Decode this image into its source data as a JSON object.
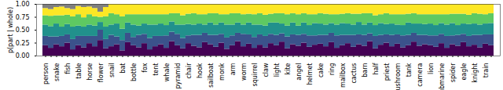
{
  "chart_data": {
    "type": "bar",
    "stacked": true,
    "y_label": "p(part | whole)",
    "categories": [
      "person",
      null,
      "snake",
      null,
      "fish",
      null,
      "table",
      null,
      "horse",
      null,
      "flower",
      null,
      "snail",
      null,
      "bat",
      null,
      "bottle",
      null,
      "fox",
      null,
      "tent",
      null,
      "whale",
      null,
      "pyramid",
      null,
      "chair",
      null,
      "hook",
      null,
      "sailboat",
      null,
      "monk",
      null,
      "arm",
      null,
      "worm",
      null,
      "squirrel",
      null,
      "claw",
      null,
      "light",
      null,
      "kite",
      null,
      "angel",
      null,
      "helmet",
      null,
      "cake",
      null,
      "ring",
      null,
      "mailbox",
      null,
      "cactus",
      null,
      "barn",
      null,
      "half",
      null,
      "priest",
      null,
      "mushroom",
      null,
      "tank",
      null,
      "camera",
      null,
      "lion",
      null,
      "submarine",
      null,
      "spider",
      null,
      "eagle",
      null,
      "knight",
      null,
      "train",
      null
    ],
    "series": [
      {
        "color": "#440154",
        "values": [
          0.2,
          0.15,
          0.22,
          0.18,
          0.25,
          0.12,
          0.2,
          0.16,
          0.24,
          0.18,
          0.3,
          0.14,
          0.18,
          0.22,
          0.1,
          0.26,
          0.2,
          0.16,
          0.24,
          0.12,
          0.18,
          0.22,
          0.15,
          0.28,
          0.2,
          0.14,
          0.24,
          0.19,
          0.16,
          0.26,
          0.22,
          0.17,
          0.25,
          0.13,
          0.2,
          0.28,
          0.18,
          0.23,
          0.15,
          0.21,
          0.16,
          0.24,
          0.2,
          0.27,
          0.14,
          0.22,
          0.19,
          0.25,
          0.17,
          0.21,
          0.23,
          0.18,
          0.26,
          0.15,
          0.2,
          0.24,
          0.17,
          0.22,
          0.19,
          0.28,
          0.14,
          0.21,
          0.25,
          0.18,
          0.23,
          0.16,
          0.2,
          0.27,
          0.19,
          0.22,
          0.2,
          0.17,
          0.24,
          0.15,
          0.22,
          0.19,
          0.26,
          0.18,
          0.21,
          0.16,
          0.23,
          0.2
        ]
      },
      {
        "color": "#3b528b",
        "values": [
          0.18,
          0.22,
          0.15,
          0.2,
          0.16,
          0.2,
          0.18,
          0.22,
          0.14,
          0.2,
          0.2,
          0.18,
          0.22,
          0.15,
          0.2,
          0.18,
          0.16,
          0.24,
          0.18,
          0.22,
          0.2,
          0.16,
          0.24,
          0.18,
          0.22,
          0.2,
          0.15,
          0.21,
          0.24,
          0.18,
          0.18,
          0.23,
          0.17,
          0.22,
          0.19,
          0.16,
          0.24,
          0.18,
          0.21,
          0.2,
          0.22,
          0.18,
          0.2,
          0.16,
          0.23,
          0.19,
          0.21,
          0.17,
          0.22,
          0.18,
          0.17,
          0.22,
          0.18,
          0.24,
          0.2,
          0.16,
          0.23,
          0.19,
          0.21,
          0.15,
          0.24,
          0.19,
          0.16,
          0.22,
          0.18,
          0.23,
          0.2,
          0.17,
          0.21,
          0.18,
          0.19,
          0.22,
          0.18,
          0.23,
          0.17,
          0.21,
          0.16,
          0.2,
          0.19,
          0.24,
          0.18,
          0.21
        ]
      },
      {
        "color": "#21918c",
        "values": [
          0.22,
          0.2,
          0.25,
          0.18,
          0.2,
          0.24,
          0.2,
          0.18,
          0.22,
          0.2,
          0.15,
          0.24,
          0.2,
          0.25,
          0.22,
          0.2,
          0.24,
          0.18,
          0.2,
          0.26,
          0.22,
          0.24,
          0.2,
          0.2,
          0.18,
          0.26,
          0.22,
          0.2,
          0.22,
          0.16,
          0.24,
          0.2,
          0.22,
          0.25,
          0.21,
          0.2,
          0.18,
          0.23,
          0.24,
          0.19,
          0.2,
          0.22,
          0.24,
          0.19,
          0.21,
          0.23,
          0.18,
          0.22,
          0.2,
          0.24,
          0.22,
          0.2,
          0.19,
          0.21,
          0.23,
          0.22,
          0.2,
          0.24,
          0.2,
          0.21,
          0.21,
          0.23,
          0.2,
          0.22,
          0.19,
          0.2,
          0.24,
          0.18,
          0.22,
          0.21,
          0.23,
          0.2,
          0.21,
          0.22,
          0.24,
          0.19,
          0.2,
          0.23,
          0.22,
          0.2,
          0.21,
          0.22
        ]
      },
      {
        "color": "#5ec962",
        "values": [
          0.18,
          0.2,
          0.16,
          0.22,
          0.18,
          0.2,
          0.22,
          0.18,
          0.2,
          0.18,
          0.1,
          0.2,
          0.22,
          0.18,
          0.24,
          0.16,
          0.2,
          0.22,
          0.18,
          0.2,
          0.2,
          0.18,
          0.21,
          0.16,
          0.22,
          0.18,
          0.2,
          0.22,
          0.18,
          0.2,
          0.18,
          0.22,
          0.16,
          0.2,
          0.22,
          0.18,
          0.2,
          0.17,
          0.2,
          0.22,
          0.21,
          0.17,
          0.18,
          0.2,
          0.22,
          0.18,
          0.22,
          0.18,
          0.21,
          0.17,
          0.2,
          0.21,
          0.17,
          0.2,
          0.18,
          0.2,
          0.21,
          0.16,
          0.22,
          0.18,
          0.19,
          0.17,
          0.21,
          0.18,
          0.2,
          0.21,
          0.17,
          0.2,
          0.18,
          0.19,
          0.18,
          0.21,
          0.17,
          0.2,
          0.18,
          0.22,
          0.19,
          0.18,
          0.2,
          0.21,
          0.18,
          0.19
        ]
      },
      {
        "color": "#fde725",
        "values": [
          0.14,
          0.13,
          0.16,
          0.17,
          0.13,
          0.14,
          0.16,
          0.2,
          0.15,
          0.16,
          0.1,
          0.18,
          0.18,
          0.2,
          0.24,
          0.2,
          0.2,
          0.2,
          0.2,
          0.2,
          0.2,
          0.2,
          0.2,
          0.18,
          0.18,
          0.22,
          0.19,
          0.18,
          0.2,
          0.2,
          0.18,
          0.18,
          0.2,
          0.2,
          0.18,
          0.18,
          0.2,
          0.19,
          0.2,
          0.18,
          0.21,
          0.19,
          0.18,
          0.18,
          0.2,
          0.18,
          0.2,
          0.18,
          0.2,
          0.2,
          0.18,
          0.19,
          0.2,
          0.2,
          0.19,
          0.18,
          0.19,
          0.19,
          0.18,
          0.18,
          0.22,
          0.2,
          0.18,
          0.2,
          0.2,
          0.2,
          0.19,
          0.18,
          0.2,
          0.2,
          0.2,
          0.2,
          0.2,
          0.2,
          0.19,
          0.19,
          0.19,
          0.21,
          0.18,
          0.19,
          0.2,
          0.18
        ]
      },
      {
        "color": "#7f7f7f",
        "values": [
          0.08,
          0.1,
          0.06,
          0.05,
          0.08,
          0.1,
          0.04,
          0.06,
          0.05,
          0.08,
          0.15,
          0.06,
          0,
          0,
          0,
          0,
          0,
          0,
          0,
          0,
          0,
          0,
          0,
          0,
          0,
          0,
          0,
          0,
          0,
          0,
          0,
          0,
          0,
          0,
          0,
          0,
          0,
          0,
          0,
          0,
          0,
          0,
          0,
          0,
          0,
          0,
          0,
          0,
          0,
          0,
          0,
          0,
          0,
          0,
          0,
          0,
          0,
          0,
          0,
          0,
          0,
          0,
          0,
          0,
          0,
          0,
          0,
          0,
          0,
          0,
          0,
          0,
          0,
          0,
          0,
          0,
          0,
          0,
          0,
          0,
          0,
          0
        ]
      }
    ],
    "ylim": [
      0,
      1
    ],
    "yticks": [
      {
        "value": 0,
        "label": "0.00"
      },
      {
        "value": 0.25,
        "label": "0.25"
      },
      {
        "value": 0.5,
        "label": "0.50"
      },
      {
        "value": 0.75,
        "label": "0.75"
      },
      {
        "value": 1,
        "label": "1.00"
      }
    ]
  }
}
